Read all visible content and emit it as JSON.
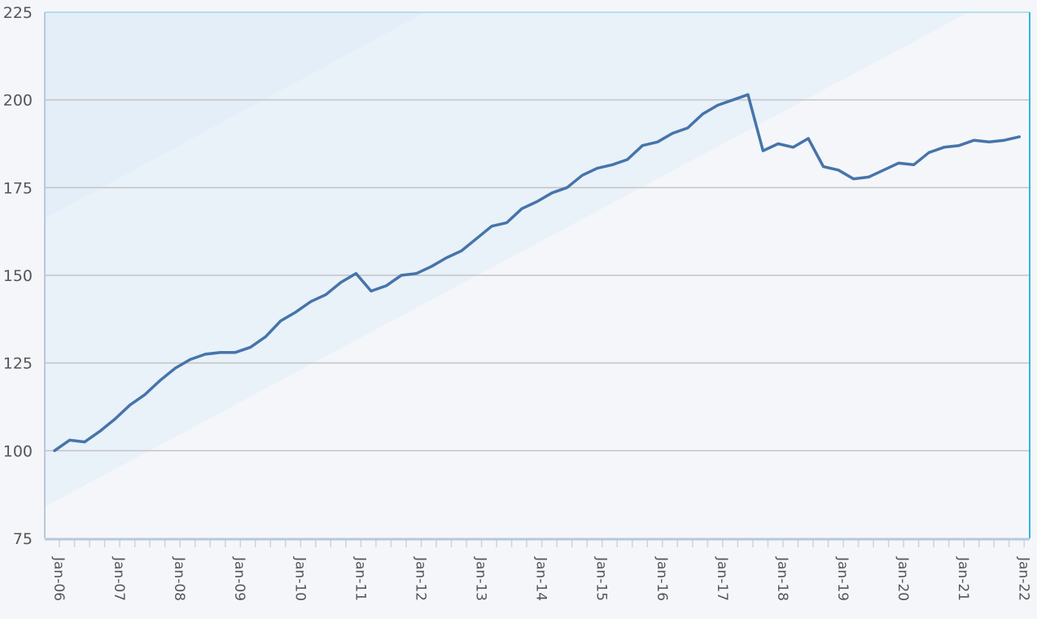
{
  "chart_data": {
    "type": "line",
    "title": "",
    "xlabel": "",
    "ylabel": "",
    "ylim": [
      75,
      225
    ],
    "yticks": [
      75,
      100,
      125,
      150,
      175,
      200,
      225
    ],
    "xtick_labels": [
      "Jan-06",
      "Jan-07",
      "Jan-08",
      "Jan-09",
      "Jan-10",
      "Jan-11",
      "Jan-12",
      "Jan-13",
      "Jan-14",
      "Jan-15",
      "Jan-16",
      "Jan-17",
      "Jan-18",
      "Jan-19",
      "Jan-20",
      "Jan-21",
      "Jan-22"
    ],
    "x_frequency": "quarterly",
    "grid": "horizontal",
    "colors": {
      "line": "#4674aa",
      "grid": "#c4c4c4",
      "background": "#f4f6fa",
      "band": "#e9f1f9",
      "band_dark": "#e3eef8",
      "frame": "#35b6d8"
    },
    "series": [
      {
        "x": [
          "Jan-06",
          "Apr-06",
          "Jul-06",
          "Oct-06",
          "Jan-07",
          "Apr-07",
          "Jul-07",
          "Oct-07",
          "Jan-08",
          "Apr-08",
          "Jul-08",
          "Oct-08",
          "Jan-09",
          "Apr-09",
          "Jul-09",
          "Oct-09",
          "Jan-10",
          "Apr-10",
          "Jul-10",
          "Oct-10",
          "Jan-11",
          "Apr-11",
          "Jul-11",
          "Oct-11",
          "Jan-12",
          "Apr-12",
          "Jul-12",
          "Oct-12",
          "Jan-13",
          "Apr-13",
          "Jul-13",
          "Oct-13",
          "Jan-14",
          "Apr-14",
          "Jul-14",
          "Oct-14",
          "Jan-15",
          "Apr-15",
          "Jul-15",
          "Oct-15",
          "Jan-16",
          "Apr-16",
          "Jul-16",
          "Oct-16",
          "Jan-17",
          "Apr-17",
          "Jul-17",
          "Oct-17",
          "Jan-18",
          "Apr-18",
          "Jul-18",
          "Oct-18",
          "Jan-19",
          "Apr-19",
          "Jul-19",
          "Oct-19",
          "Jan-20",
          "Apr-20",
          "Jul-20",
          "Oct-20",
          "Jan-21",
          "Apr-21",
          "Jul-21",
          "Oct-21",
          "Jan-22"
        ],
        "values": [
          100,
          103,
          102.5,
          105.5,
          109,
          113,
          116,
          120,
          123.5,
          126,
          127.5,
          128,
          128,
          129.5,
          132.5,
          137,
          139.5,
          142.5,
          144.5,
          148,
          150.5,
          145.5,
          147,
          150,
          150.5,
          152.5,
          155,
          157,
          160.5,
          164,
          165,
          169,
          171,
          173.5,
          175,
          178.5,
          180.5,
          181.5,
          183,
          187,
          188,
          190.5,
          192,
          196,
          198.5,
          200,
          201.5,
          185.5,
          187.5,
          186.5,
          189,
          181,
          180,
          177.5,
          178,
          180,
          182,
          181.5,
          185,
          186.5,
          187,
          188.5,
          188,
          188.5,
          189.5
        ]
      }
    ]
  }
}
